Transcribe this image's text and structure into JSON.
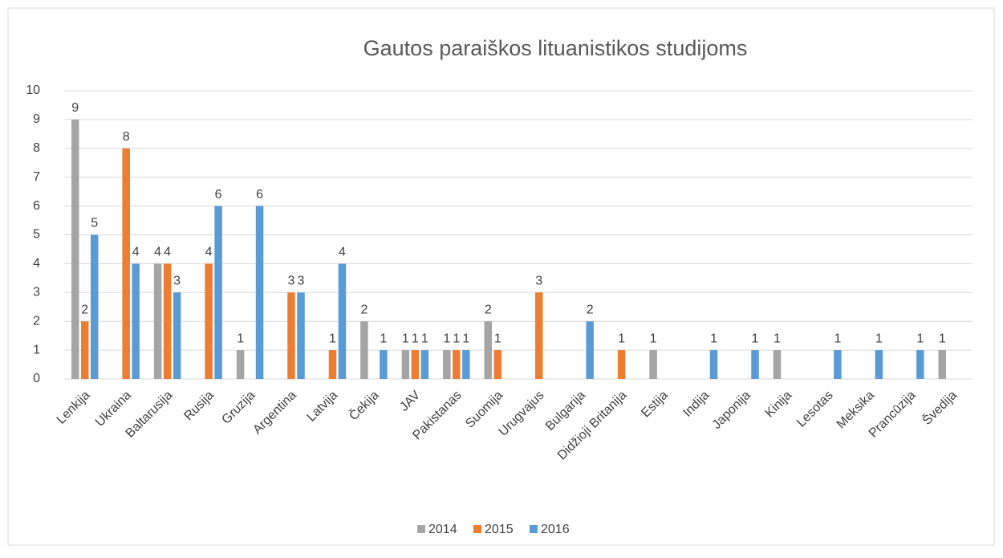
{
  "chart_data": {
    "type": "bar",
    "title": "Gautos paraiškos lituanistikos studijoms",
    "categories": [
      "Lenkija",
      "Ukraina",
      "Baltarusija",
      "Rusija",
      "Gruzija",
      "Argentina",
      "Latvija",
      "Čekija",
      "JAV",
      "Pakistanas",
      "Suomija",
      "Urugvajus",
      "Bulgarija",
      "Didžioji Britanija",
      "Estija",
      "Indija",
      "Japonija",
      "Kinija",
      "Lesotas",
      "Meksika",
      "Prancūzija",
      "Švedija"
    ],
    "series": [
      {
        "name": "2014",
        "color": "#a5a5a5",
        "values": [
          9,
          null,
          4,
          null,
          1,
          null,
          null,
          2,
          1,
          1,
          2,
          null,
          null,
          null,
          1,
          null,
          null,
          1,
          null,
          null,
          null,
          1
        ]
      },
      {
        "name": "2015",
        "color": "#ed7d31",
        "values": [
          2,
          8,
          4,
          4,
          null,
          3,
          1,
          null,
          1,
          1,
          1,
          3,
          null,
          1,
          null,
          null,
          null,
          null,
          null,
          null,
          null,
          null
        ]
      },
      {
        "name": "2016",
        "color": "#5b9bd5",
        "values": [
          5,
          4,
          3,
          6,
          6,
          3,
          4,
          1,
          1,
          1,
          null,
          null,
          2,
          null,
          null,
          1,
          1,
          null,
          1,
          1,
          1,
          null
        ]
      }
    ],
    "ylim": [
      0,
      10
    ],
    "yticks": [
      0,
      1,
      2,
      3,
      4,
      5,
      6,
      7,
      8,
      9,
      10
    ],
    "grid": true,
    "legend": "bottom"
  }
}
